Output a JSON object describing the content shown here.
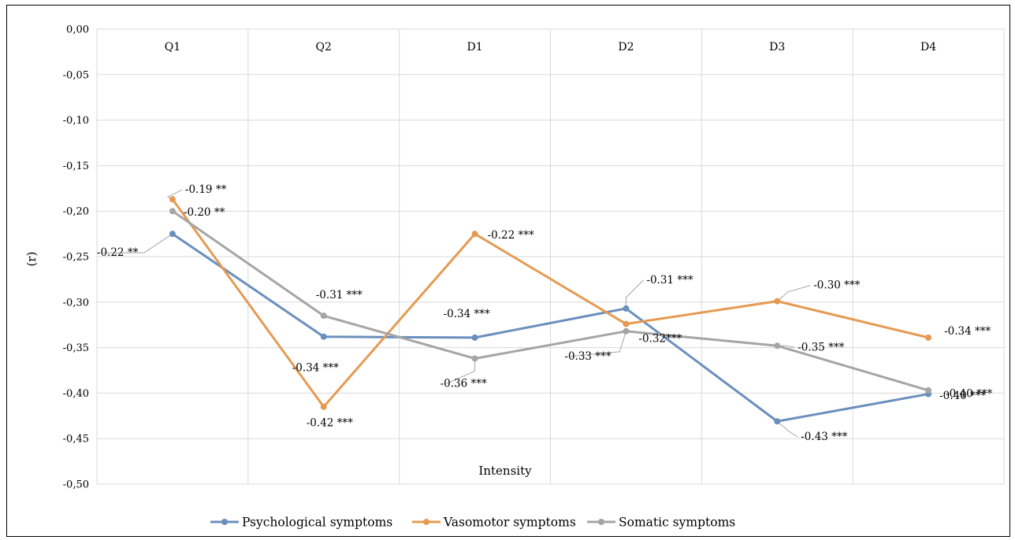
{
  "chart_data": {
    "type": "line",
    "categories": [
      "Q1",
      "Q2",
      "D1",
      "D2",
      "D3",
      "D4"
    ],
    "xlabel": "Intensity",
    "ylabel": "(r)",
    "ylim": [
      -0.5,
      0
    ],
    "y_ticks": [
      "0,00",
      "-0,05",
      "-0,10",
      "-0,15",
      "-0,20",
      "-0,25",
      "-0,30",
      "-0,35",
      "-0,40",
      "-0,45",
      "-0,50"
    ],
    "grid": true,
    "legend_position": "bottom",
    "series": [
      {
        "name": "Psychological symptoms",
        "color": "#6a8fbd",
        "values": [
          -0.225,
          -0.338,
          -0.339,
          -0.307,
          -0.431,
          -0.401
        ],
        "labels": [
          "-0.22 **",
          "-0.34 ***",
          "-0.34 ***",
          "-0.31 ***",
          "-0.43 ***",
          "-0.40 ***"
        ]
      },
      {
        "name": "Vasomotor symptoms",
        "color": "#e59a52",
        "values": [
          -0.187,
          -0.415,
          -0.225,
          -0.324,
          -0.299,
          -0.339
        ],
        "labels": [
          "-0.19 **",
          "-0.42 ***",
          "-0.22 ***",
          "-0.32***",
          "-0.30 ***",
          "-0.34 ***"
        ]
      },
      {
        "name": "Somatic symptoms",
        "color": "#a5a5a5",
        "values": [
          -0.2,
          -0.315,
          -0.362,
          -0.332,
          -0.348,
          -0.397
        ],
        "labels": [
          "-0.20 **",
          "-0.31 ***",
          "-0.36 ***",
          "-0.33 ***",
          "-0.35 ***",
          "-0.40 ***"
        ]
      }
    ]
  }
}
